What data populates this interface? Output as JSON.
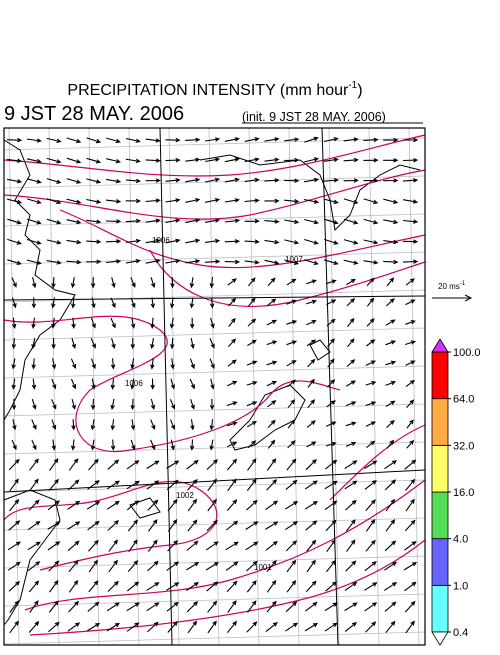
{
  "header": {
    "title": {
      "text": "PRECIPITATION INTENSITY (mm hour",
      "superscript": "-1",
      "close": ")"
    },
    "valid_time": "9 JST 28 MAY. 2006",
    "init_time": "(init. 9 JST 28 MAY. 2006)"
  },
  "wind_legend": {
    "text": "20 ms",
    "superscript": "-1"
  },
  "contour_labels": [
    "1006",
    "1007",
    "1006",
    "1002",
    "1001"
  ],
  "colorbar": {
    "levels": [
      {
        "value": 0.4,
        "label": "0.4"
      },
      {
        "value": 1,
        "label": "1.0"
      },
      {
        "value": 4,
        "label": "4.0"
      },
      {
        "value": 16,
        "label": "16.0"
      },
      {
        "value": 32,
        "label": "32.0"
      },
      {
        "value": 64,
        "label": "64.0"
      },
      {
        "value": 100,
        "label": "100.0"
      }
    ],
    "colors": [
      "#66ffff",
      "#6666ff",
      "#55dd55",
      "#ffff66",
      "#ffaa44",
      "#ff0000"
    ],
    "over_color": "#cc33ff",
    "under_color": "#ffffff"
  }
}
